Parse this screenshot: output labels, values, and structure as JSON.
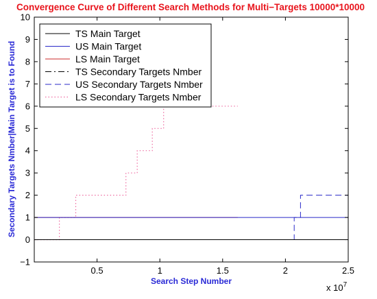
{
  "chart_data": {
    "type": "line",
    "title": "Convergence Curve of Different Search Methods for Multi−Targets 10000*10000",
    "xlabel": "Search Step Number",
    "ylabel": "Secondary Targets Nmber|Main Target is to Found",
    "x_multiplier_label": "x 10",
    "x_multiplier_exponent": "7",
    "xlim": [
      0,
      25000000
    ],
    "ylim": [
      -1,
      10
    ],
    "x_ticks": [
      5000000,
      10000000,
      15000000,
      20000000,
      25000000
    ],
    "x_tick_labels": [
      "0.5",
      "1",
      "1.5",
      "2",
      "2.5"
    ],
    "y_ticks": [
      -1,
      0,
      1,
      2,
      3,
      4,
      5,
      6,
      7,
      8,
      9,
      10
    ],
    "y_tick_labels": [
      "−1",
      "0",
      "1",
      "2",
      "3",
      "4",
      "5",
      "6",
      "7",
      "8",
      "9",
      "10"
    ],
    "grid": false,
    "legend_position": "top-left",
    "colors": {
      "title": "#e8141c",
      "axis_label": "#2929d6",
      "ts": "#000000",
      "us": "#2828c8",
      "ls": "#cc2a2a"
    },
    "series": [
      {
        "name": "TS Main Target",
        "color": "#000000",
        "style": "solid",
        "x": [
          0,
          25000000
        ],
        "y": [
          0,
          0
        ]
      },
      {
        "name": "US Main Target",
        "color": "#2828c8",
        "style": "solid",
        "x": [
          0,
          25000000
        ],
        "y": [
          1,
          1
        ]
      },
      {
        "name": "LS Main Target",
        "color": "#cc2a2a",
        "style": "solid",
        "x": [
          0,
          16200000
        ],
        "y": [
          1,
          1
        ]
      },
      {
        "name": "TS Secondary Targets Nmber",
        "color": "#000000",
        "style": "dashdot",
        "x": [
          0,
          25000000
        ],
        "y": [
          0,
          0
        ]
      },
      {
        "name": "US Secondary Targets Nmber",
        "color": "#2828c8",
        "style": "dashed",
        "x": [
          0,
          20700000,
          20700000,
          21200000,
          21200000,
          25000000
        ],
        "y": [
          0,
          0,
          1,
          1,
          2,
          2
        ]
      },
      {
        "name": "LS Secondary Targets Nmber",
        "color": "#ee6aa0",
        "style": "dotted",
        "x": [
          0,
          2000000,
          2000000,
          3300000,
          3300000,
          7300000,
          7300000,
          8200000,
          8200000,
          9400000,
          9400000,
          10300000,
          10300000,
          16200000
        ],
        "y": [
          0,
          0,
          1,
          1,
          2,
          2,
          3,
          3,
          4,
          4,
          5,
          5,
          6,
          6
        ]
      }
    ]
  }
}
